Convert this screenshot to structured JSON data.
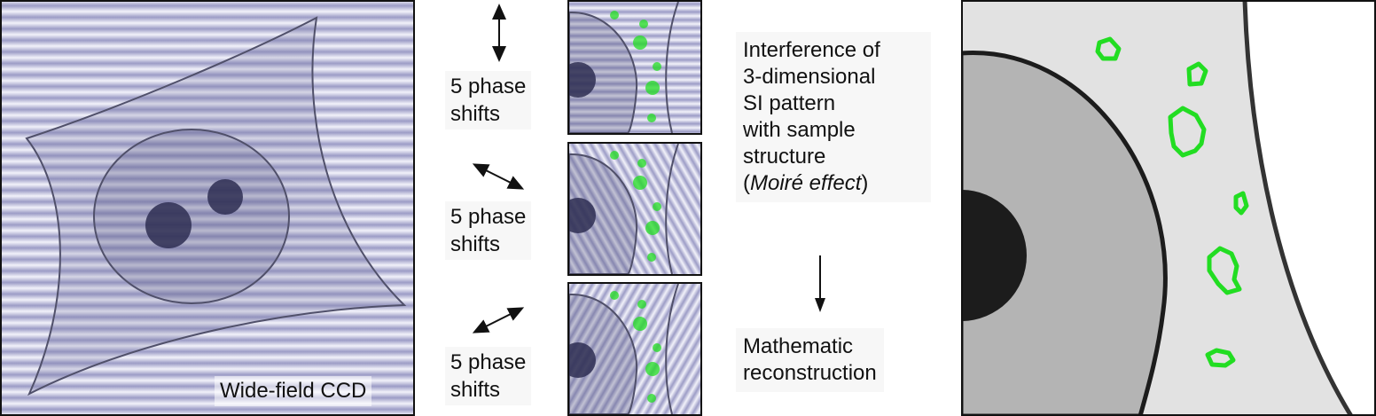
{
  "wide_field": {
    "caption": "Wide-field CCD"
  },
  "phase_panels": [
    {
      "label_line1": "5 phase",
      "label_line2": "shifts"
    },
    {
      "label_line1": "5 phase",
      "label_line2": "shifts"
    },
    {
      "label_line1": "5 phase",
      "label_line2": "shifts"
    }
  ],
  "interference": {
    "line1": "Interference of",
    "line2": "3-dimensional",
    "line3": "SI pattern",
    "line4": "with sample",
    "line5": "structure",
    "line6_open": "(",
    "line6_italic": "Moiré effect",
    "line6_close": ")"
  },
  "reconstruction": {
    "line1": "Mathematic",
    "line2": "reconstruction"
  },
  "colors": {
    "stripe_light": "#f2f2fa",
    "stripe_dark": "#9c9cc6",
    "cell_outline": "#50506a",
    "nucleolus": "#2e2e52",
    "fluorescence": "#22dd22",
    "result_bg": "#e2e2e2",
    "result_nucleus": "#b4b4b4",
    "result_nucleolus": "#1c1c1c"
  }
}
